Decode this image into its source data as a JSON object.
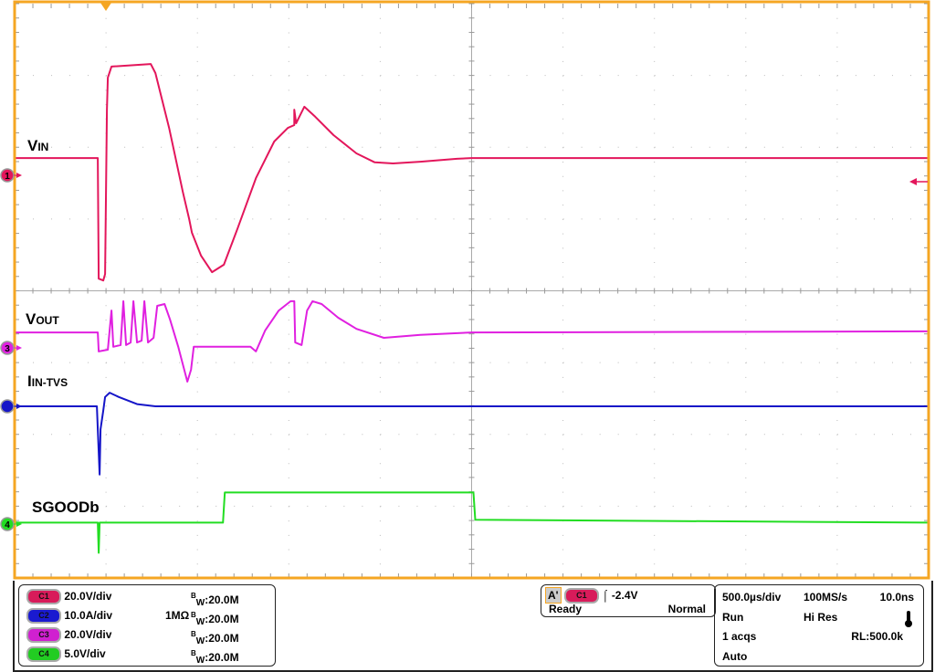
{
  "chart_data": {
    "type": "line",
    "xlabel": "",
    "ylabel": "",
    "x_units": "µs",
    "xlim": [
      -500,
      4500
    ],
    "grid": true,
    "trigger_marker_time": 0,
    "series": [
      {
        "name": "VIN",
        "label_main": "V",
        "label_sub": "IN",
        "channel": "1",
        "marker_text": "1",
        "scale": "20.0V/div",
        "units": "V",
        "color": "#e3165b",
        "points": [
          [
            -500,
            4.8
          ],
          [
            -45,
            4.8
          ],
          [
            -40,
            -28.8
          ],
          [
            -15,
            -29.3
          ],
          [
            -5,
            -27.5
          ],
          [
            5,
            18.3
          ],
          [
            10,
            27.2
          ],
          [
            30,
            30.3
          ],
          [
            245,
            31.0
          ],
          [
            270,
            28.5
          ],
          [
            345,
            13.2
          ],
          [
            420,
            -4.6
          ],
          [
            455,
            -12.2
          ],
          [
            470,
            -16.0
          ],
          [
            520,
            -22.4
          ],
          [
            580,
            -27.0
          ],
          [
            645,
            -24.9
          ],
          [
            720,
            -14.8
          ],
          [
            820,
            -0.8
          ],
          [
            920,
            9.4
          ],
          [
            995,
            13.2
          ],
          [
            1030,
            14.0
          ],
          [
            1030,
            18.3
          ],
          [
            1040,
            14.5
          ],
          [
            1085,
            19.1
          ],
          [
            1145,
            16.3
          ],
          [
            1245,
            11.2
          ],
          [
            1370,
            6.1
          ],
          [
            1470,
            3.6
          ],
          [
            1570,
            3.3
          ],
          [
            1720,
            3.8
          ],
          [
            1920,
            4.6
          ],
          [
            2000,
            4.8
          ],
          [
            4500,
            4.8
          ]
        ]
      },
      {
        "name": "VOUT",
        "label_main": "V",
        "label_sub": "OUT",
        "channel": "3",
        "marker_text": "3",
        "scale": "20.0V/div",
        "units": "V",
        "color": "#e020e0",
        "points": [
          [
            -500,
            4.3
          ],
          [
            -45,
            4.3
          ],
          [
            -40,
            -1.0
          ],
          [
            10,
            -0.5
          ],
          [
            30,
            10.4
          ],
          [
            40,
            0.3
          ],
          [
            80,
            0.8
          ],
          [
            95,
            13.0
          ],
          [
            110,
            0.8
          ],
          [
            135,
            1.5
          ],
          [
            150,
            13.0
          ],
          [
            170,
            1.5
          ],
          [
            195,
            2.0
          ],
          [
            210,
            13.0
          ],
          [
            230,
            1.5
          ],
          [
            260,
            2.8
          ],
          [
            280,
            11.7
          ],
          [
            320,
            12.2
          ],
          [
            350,
            7.9
          ],
          [
            395,
            0.3
          ],
          [
            445,
            -9.4
          ],
          [
            465,
            -6.1
          ],
          [
            480,
            0.3
          ],
          [
            790,
            0.3
          ],
          [
            820,
            -1.0
          ],
          [
            870,
            4.8
          ],
          [
            945,
            10.4
          ],
          [
            1010,
            13.0
          ],
          [
            1030,
            13.0
          ],
          [
            1035,
            1.5
          ],
          [
            1070,
            0.8
          ],
          [
            1100,
            10.4
          ],
          [
            1130,
            13.0
          ],
          [
            1180,
            12.2
          ],
          [
            1270,
            8.4
          ],
          [
            1370,
            5.3
          ],
          [
            1520,
            2.8
          ],
          [
            1720,
            3.6
          ],
          [
            2000,
            4.3
          ],
          [
            4500,
            4.6
          ]
        ]
      },
      {
        "name": "IIN-TVS",
        "label_main": "I",
        "label_sub": "IN-TVS",
        "channel": "2",
        "marker_text": "",
        "scale": "10.0A/div",
        "units": "A",
        "color": "#1515c8",
        "points": [
          [
            -500,
            0
          ],
          [
            -50,
            0
          ],
          [
            -45,
            -3.2
          ],
          [
            -35,
            -9.5
          ],
          [
            -30,
            -3.2
          ],
          [
            -15,
            -0.6
          ],
          [
            -5,
            1.3
          ],
          [
            20,
            1.9
          ],
          [
            70,
            1.3
          ],
          [
            170,
            0.3
          ],
          [
            270,
            0
          ],
          [
            4500,
            0
          ]
        ]
      },
      {
        "name": "SGOODb",
        "label_main": "SGOODb",
        "label_sub": "",
        "channel": "4",
        "marker_text": "4",
        "scale": "5.0V/div",
        "units": "V",
        "color": "#22dd22",
        "points": [
          [
            -500,
            0.1
          ],
          [
            -45,
            0.1
          ],
          [
            -40,
            -2.0
          ],
          [
            -35,
            0.1
          ],
          [
            640,
            0.1
          ],
          [
            650,
            2.2
          ],
          [
            2010,
            2.2
          ],
          [
            2020,
            0.3
          ],
          [
            4500,
            0.1
          ]
        ]
      }
    ]
  },
  "channels": [
    {
      "pill": "C1",
      "color": "#d81b5a",
      "scale": "20.0V/div",
      "coupling": "",
      "bw_prefix": "B",
      "bw_sub": "W",
      "bw_value": ":20.0M"
    },
    {
      "pill": "C2",
      "color": "#1a1ad0",
      "scale": "10.0A/div",
      "coupling": "1MΩ",
      "bw_prefix": "B",
      "bw_sub": "W",
      "bw_value": ":20.0M"
    },
    {
      "pill": "C3",
      "color": "#d020d0",
      "scale": "20.0V/div",
      "coupling": "",
      "bw_prefix": "B",
      "bw_sub": "W",
      "bw_value": ":20.0M"
    },
    {
      "pill": "C4",
      "color": "#22cc22",
      "scale": "5.0V/div",
      "coupling": "",
      "bw_prefix": "B",
      "bw_sub": "W",
      "bw_value": ":20.0M"
    }
  ],
  "trigger": {
    "mode_tag": "A'",
    "source": "C1",
    "slope_icon": "rising-edge-icon",
    "level": "-2.4V",
    "state": "Ready",
    "type": "Normal"
  },
  "acquisition": {
    "timebase": "500.0µs/div",
    "sample_rate": "100MS/s",
    "resolution": "10.0ns",
    "run_state": "Run",
    "acq_mode": "Hi Res",
    "acqs": "1 acqs",
    "record_length": "RL:500.0k",
    "trigger_mode": "Auto",
    "thermometer_icon": "thermometer-icon"
  },
  "colors": {
    "frame": "#f5a623",
    "grid": "#999999"
  }
}
